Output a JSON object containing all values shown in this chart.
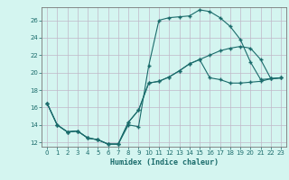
{
  "xlabel": "Humidex (Indice chaleur)",
  "bg_color": "#d4f5f0",
  "grid_color": "#c0b8c8",
  "line_color": "#1a6b6b",
  "xlim": [
    -0.5,
    23.5
  ],
  "ylim": [
    11.5,
    27.5
  ],
  "xticks": [
    0,
    1,
    2,
    3,
    4,
    5,
    6,
    7,
    8,
    9,
    10,
    11,
    12,
    13,
    14,
    15,
    16,
    17,
    18,
    19,
    20,
    21,
    22,
    23
  ],
  "yticks": [
    12,
    14,
    16,
    18,
    20,
    22,
    24,
    26
  ],
  "line1_x": [
    0,
    1,
    2,
    3,
    4,
    5,
    6,
    7,
    8,
    9,
    10,
    11,
    12,
    13,
    14,
    15,
    16,
    17,
    18,
    19,
    20,
    21,
    22,
    23
  ],
  "line1_y": [
    16.5,
    14.0,
    13.2,
    13.3,
    12.5,
    12.3,
    11.8,
    11.8,
    14.0,
    13.8,
    20.8,
    26.0,
    26.3,
    26.4,
    26.5,
    27.2,
    27.0,
    26.3,
    25.3,
    23.8,
    21.2,
    19.2,
    19.3,
    19.4
  ],
  "line2_x": [
    0,
    1,
    2,
    3,
    4,
    5,
    6,
    7,
    8,
    9,
    10,
    11,
    12,
    13,
    14,
    15,
    16,
    17,
    18,
    19,
    20,
    21,
    22,
    23
  ],
  "line2_y": [
    16.5,
    14.0,
    13.2,
    13.3,
    12.5,
    12.3,
    11.8,
    11.8,
    14.3,
    15.7,
    18.8,
    19.0,
    19.5,
    20.2,
    21.0,
    21.5,
    22.0,
    22.5,
    22.8,
    23.0,
    22.8,
    21.5,
    19.3,
    19.4
  ],
  "line3_x": [
    0,
    1,
    2,
    3,
    4,
    5,
    6,
    7,
    8,
    9,
    10,
    11,
    12,
    13,
    14,
    15,
    16,
    17,
    18,
    19,
    20,
    21,
    22,
    23
  ],
  "line3_y": [
    16.5,
    14.0,
    13.2,
    13.3,
    12.5,
    12.3,
    11.8,
    11.8,
    14.3,
    15.7,
    18.8,
    19.0,
    19.5,
    20.2,
    21.0,
    21.5,
    19.4,
    19.2,
    18.8,
    18.8,
    18.9,
    19.0,
    19.3,
    19.4
  ]
}
